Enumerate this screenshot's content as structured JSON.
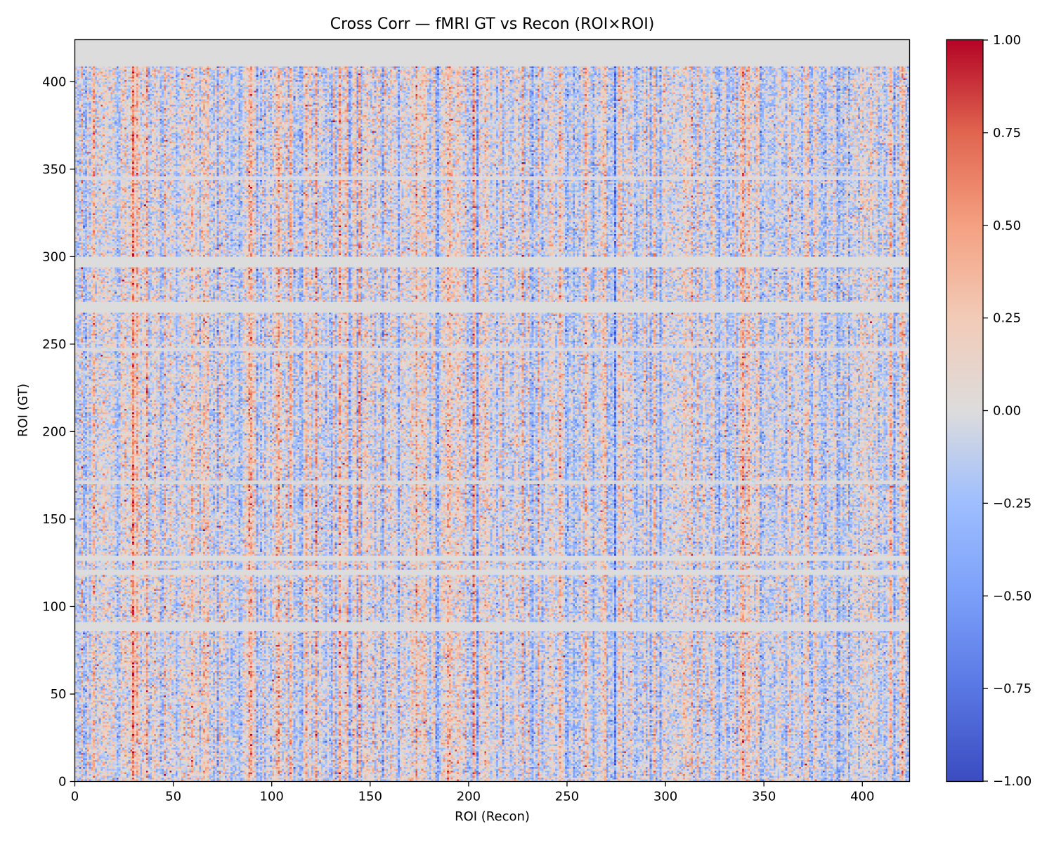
{
  "chart_data": {
    "type": "heatmap",
    "title": "Cross Corr — fMRI GT vs Recon (ROI×ROI)",
    "xlabel": "ROI (Recon)",
    "ylabel": "ROI (GT)",
    "n_rows": 424,
    "n_cols": 424,
    "xlim": [
      0,
      424
    ],
    "ylim": [
      0,
      424
    ],
    "x_ticks": [
      0,
      50,
      100,
      150,
      200,
      250,
      300,
      350,
      400
    ],
    "y_ticks": [
      0,
      50,
      100,
      150,
      200,
      250,
      300,
      350,
      400
    ],
    "x_tick_labels": [
      "0",
      "50",
      "100",
      "150",
      "200",
      "250",
      "300",
      "350",
      "400"
    ],
    "y_tick_labels": [
      "0",
      "50",
      "100",
      "150",
      "200",
      "250",
      "300",
      "350",
      "400"
    ],
    "colormap": "coolwarm",
    "vmin": -1.0,
    "vmax": 1.0,
    "colorbar_ticks": [
      1.0,
      0.75,
      0.5,
      0.25,
      0.0,
      -0.25,
      -0.5,
      -0.75,
      -1.0
    ],
    "colorbar_tick_labels": [
      "1.00",
      "0.75",
      "0.50",
      "0.25",
      "0.00",
      "−0.25",
      "−0.50",
      "−0.75",
      "−1.00"
    ],
    "zero_rows": [
      [
        86,
        91
      ],
      [
        118,
        121
      ],
      [
        126,
        129
      ],
      [
        268,
        274
      ],
      [
        294,
        300
      ],
      [
        409,
        424
      ]
    ],
    "faint_rows": [
      [
        170,
        172
      ],
      [
        246,
        248
      ],
      [
        344,
        346
      ]
    ],
    "colors": {
      "cmap_low": "#3b4cc0",
      "cmap_mid": "#dddddd",
      "cmap_high": "#b40426",
      "frame": "#000000"
    }
  }
}
